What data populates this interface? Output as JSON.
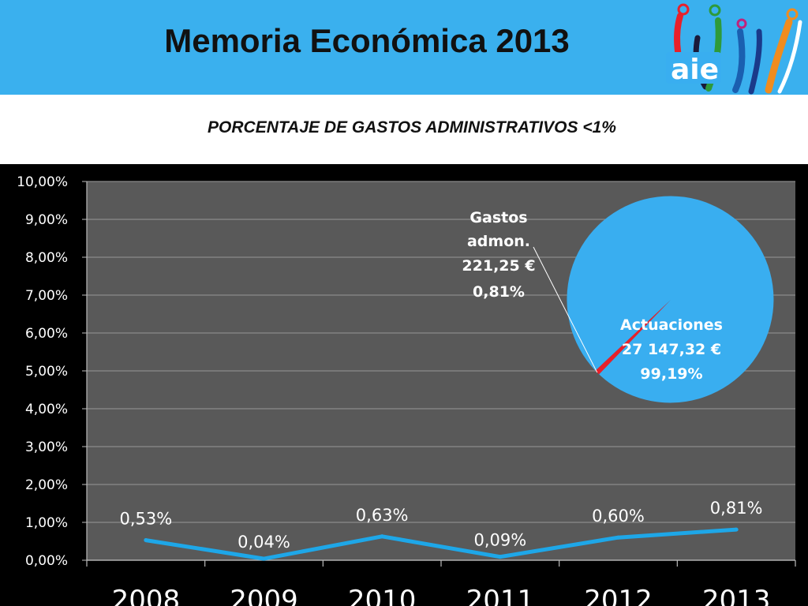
{
  "header": {
    "title": "Memoria Económica 2013",
    "logo_text": "aie"
  },
  "chart_data": [
    {
      "type": "line",
      "title": "PORCENTAJE DE GASTOS ADMINISTRATIVOS <1%",
      "categories": [
        "2008",
        "2009",
        "2010",
        "2011",
        "2012",
        "2013"
      ],
      "values": [
        0.53,
        0.04,
        0.63,
        0.09,
        0.6,
        0.81
      ],
      "data_labels": [
        "0,53%",
        "0,04%",
        "0,63%",
        "0,09%",
        "0,60%",
        "0,81%"
      ],
      "ylim": [
        0,
        10
      ],
      "yticks": [
        "0,00%",
        "1,00%",
        "2,00%",
        "3,00%",
        "4,00%",
        "5,00%",
        "6,00%",
        "7,00%",
        "8,00%",
        "9,00%",
        "10,00%"
      ],
      "xlabel": "",
      "ylabel": "",
      "grid": true,
      "line_color": "#1ea7e8",
      "plot_background": "#595959"
    },
    {
      "type": "pie",
      "slices": [
        {
          "label": "Gastos admon.",
          "amount": "221,25 €",
          "percent_label": "0,81%",
          "value": 0.81,
          "color": "#e8202a"
        },
        {
          "label": "Actuaciones",
          "amount": "27 147,32 €",
          "percent_label": "99,19%",
          "value": 99.19,
          "color": "#39aef0"
        }
      ]
    }
  ],
  "colors": {
    "header_background": "#3ab0ee",
    "page_background": "#000000"
  }
}
